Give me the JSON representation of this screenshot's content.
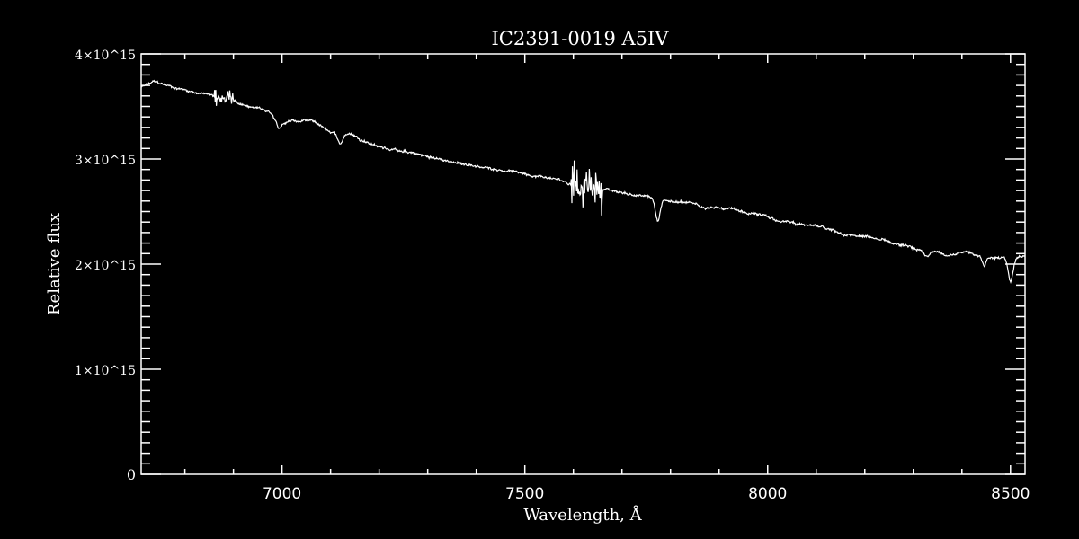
{
  "chart_data": {
    "type": "line",
    "title": "IC2391-0019   A5IV",
    "xlabel": "Wavelength, Å",
    "ylabel": "Relative flux",
    "xlim": [
      6710,
      8530
    ],
    "ylim": [
      0,
      4000000000000000.0
    ],
    "x_ticks": [
      {
        "value": 7000,
        "label": "7000"
      },
      {
        "value": 7500,
        "label": "7500"
      },
      {
        "value": 8000,
        "label": "8000"
      },
      {
        "value": 8500,
        "label": "8500"
      }
    ],
    "x_minor_step": 100,
    "y_ticks": [
      {
        "value": 0,
        "label": "0",
        "mantissa": "",
        "exponent": ""
      },
      {
        "value": 1000000000000000.0,
        "label": "1×10^15",
        "mantissa": "1×10",
        "exponent": "15"
      },
      {
        "value": 2000000000000000.0,
        "label": "2×10^15",
        "mantissa": "2×10",
        "exponent": "15"
      },
      {
        "value": 3000000000000000.0,
        "label": "3×10^15",
        "mantissa": "3×10",
        "exponent": "15"
      },
      {
        "value": 4000000000000000.0,
        "label": "4×10^15",
        "mantissa": "4×10",
        "exponent": "15"
      }
    ],
    "y_minor_step": 100000000000000.0,
    "grid": false,
    "series": [
      {
        "name": "spectrum",
        "color": "#ffffff",
        "continuum": [
          [
            6710,
            3680000000000000.0
          ],
          [
            6735,
            3730000000000000.0
          ],
          [
            6780,
            3680000000000000.0
          ],
          [
            6860,
            3600000000000000.0
          ],
          [
            6900,
            3550000000000000.0
          ],
          [
            6975,
            3450000000000000.0
          ],
          [
            6995,
            3360000000000000.0
          ],
          [
            7060,
            3360000000000000.0
          ],
          [
            7100,
            3260000000000000.0
          ],
          [
            7140,
            3240000000000000.0
          ],
          [
            7200,
            3120000000000000.0
          ],
          [
            7340,
            2980000000000000.0
          ],
          [
            7495,
            2870000000000000.0
          ],
          [
            7570,
            2800000000000000.0
          ],
          [
            7600,
            2760000000000000.0
          ],
          [
            7680,
            2700000000000000.0
          ],
          [
            7770,
            2620000000000000.0
          ],
          [
            7900,
            2530000000000000.0
          ],
          [
            7995,
            2450000000000000.0
          ],
          [
            8085,
            2360000000000000.0
          ],
          [
            8195,
            2260000000000000.0
          ],
          [
            8270,
            2190000000000000.0
          ],
          [
            8320,
            2120000000000000.0
          ],
          [
            8360,
            2100000000000000.0
          ],
          [
            8420,
            2100000000000000.0
          ],
          [
            8480,
            2050000000000000.0
          ],
          [
            8530,
            2080000000000000.0
          ]
        ],
        "absorption_lines": [
          {
            "center": 6995,
            "depth": 50000000000000.0,
            "width": 6
          },
          {
            "center": 7120,
            "depth": 100000000000000.0,
            "width": 5
          },
          {
            "center": 7774,
            "depth": 220000000000000.0,
            "width": 5
          },
          {
            "center": 8326,
            "depth": 60000000000000.0,
            "width": 6
          },
          {
            "center": 8446,
            "depth": 100000000000000.0,
            "width": 4
          },
          {
            "center": 8500,
            "depth": 220000000000000.0,
            "width": 5
          }
        ],
        "noisy_regions": [
          {
            "from": 6860,
            "to": 6900,
            "amplitude": 100000000000000.0
          },
          {
            "from": 7595,
            "to": 7660,
            "amplitude": 250000000000000.0
          }
        ],
        "base_noise": 15000000000000.0
      }
    ]
  }
}
